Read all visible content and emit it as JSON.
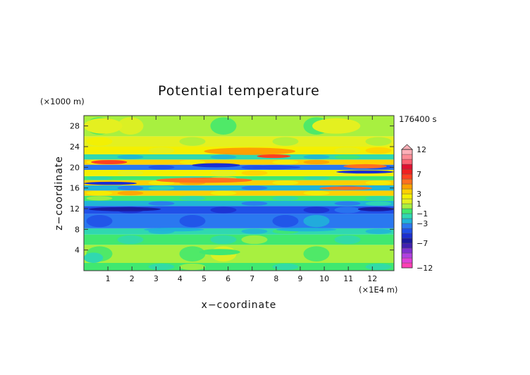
{
  "chart_data": {
    "type": "heatmap",
    "title": "Potential temperature",
    "xlabel": "x−coordinate",
    "ylabel": "z−coordinate",
    "x_unit": "(×1E4 m)",
    "y_unit": "(×1000 m)",
    "time_label": "176400 s",
    "xlim": [
      0,
      12.9
    ],
    "ylim": [
      0,
      30
    ],
    "x_ticks": [
      "1",
      "2",
      "3",
      "4",
      "5",
      "6",
      "7",
      "8",
      "9",
      "10",
      "11",
      "12"
    ],
    "y_ticks": [
      "4",
      "8",
      "12",
      "16",
      "20",
      "24",
      "28"
    ],
    "colorbar": {
      "labels": [
        "12",
        "7",
        "3",
        "1",
        "−1",
        "−3",
        "−7",
        "−12"
      ],
      "levels": [
        -12,
        -11,
        -10,
        -9,
        -8,
        -7,
        -6,
        -5,
        -4,
        -3,
        -2,
        -1,
        0,
        1,
        2,
        3,
        4,
        5,
        6,
        7,
        8,
        9,
        10,
        11,
        12
      ],
      "colors": [
        "#ff3fb4",
        "#e040d8",
        "#b040e0",
        "#8030d0",
        "#4020b0",
        "#1a1aa0",
        "#1c2fd0",
        "#2050e8",
        "#2a78f0",
        "#20b4d8",
        "#30d8b0",
        "#40e870",
        "#a8f040",
        "#e4f020",
        "#f4f000",
        "#ffd000",
        "#ffa000",
        "#ff7020",
        "#ff4020",
        "#f02020",
        "#e01030",
        "#ff6070",
        "#ff8c96",
        "#ffb0b8"
      ]
    },
    "bands": [
      {
        "z_from": 0,
        "z_to": 1.5,
        "level": -1
      },
      {
        "z_from": 1.5,
        "z_to": 5,
        "level": 0
      },
      {
        "z_from": 5,
        "z_to": 7,
        "level": -1
      },
      {
        "z_from": 7,
        "z_to": 8.2,
        "level": -2
      },
      {
        "z_from": 8.2,
        "z_to": 11,
        "level": -4
      },
      {
        "z_from": 11,
        "z_to": 12.5,
        "level": -5
      },
      {
        "z_from": 12.5,
        "z_to": 13.5,
        "level": -3
      },
      {
        "z_from": 13.5,
        "z_to": 14.5,
        "level": -1
      },
      {
        "z_from": 14.5,
        "z_to": 15.5,
        "level": 3
      },
      {
        "z_from": 15.5,
        "z_to": 16.5,
        "level": -3
      },
      {
        "z_from": 16.5,
        "z_to": 17.5,
        "level": 3
      },
      {
        "z_from": 17.5,
        "z_to": 18.3,
        "level": -1
      },
      {
        "z_from": 18.3,
        "z_to": 19.5,
        "level": 2
      },
      {
        "z_from": 19.5,
        "z_to": 20.5,
        "level": -4
      },
      {
        "z_from": 20.5,
        "z_to": 21.5,
        "level": 3
      },
      {
        "z_from": 21.5,
        "z_to": 22.5,
        "level": -2
      },
      {
        "z_from": 22.5,
        "z_to": 24,
        "level": 2
      },
      {
        "z_from": 24,
        "z_to": 26,
        "level": 1
      },
      {
        "z_from": 26,
        "z_to": 30,
        "level": 0
      }
    ],
    "features": [
      {
        "x": [
          0.2,
          3.2
        ],
        "z": [
          11.5,
          12.3
        ],
        "level": -7
      },
      {
        "x": [
          11.4,
          12.9
        ],
        "z": [
          11.5,
          12.3
        ],
        "level": -7
      },
      {
        "x": [
          0.0,
          2.2
        ],
        "z": [
          16.6,
          17.2
        ],
        "level": -6
      },
      {
        "x": [
          4.5,
          6.5
        ],
        "z": [
          20.0,
          20.8
        ],
        "level": -6
      },
      {
        "x": [
          7.0,
          9.0
        ],
        "z": [
          19.6,
          20.4
        ],
        "level": -5
      },
      {
        "x": [
          10.5,
          12.9
        ],
        "z": [
          18.8,
          19.4
        ],
        "level": -6
      },
      {
        "x": [
          0.3,
          1.8
        ],
        "z": [
          20.6,
          21.4
        ],
        "level": 6
      },
      {
        "x": [
          5.0,
          8.8
        ],
        "z": [
          22.4,
          23.8
        ],
        "level": 4
      },
      {
        "x": [
          7.2,
          8.6
        ],
        "z": [
          21.8,
          22.5
        ],
        "level": 6
      },
      {
        "x": [
          10.8,
          12.6
        ],
        "z": [
          19.8,
          20.6
        ],
        "level": 5
      },
      {
        "x": [
          3.0,
          7.0
        ],
        "z": [
          17.0,
          18.0
        ],
        "level": 5
      },
      {
        "x": [
          9.8,
          12.0
        ],
        "z": [
          15.6,
          16.3
        ],
        "level": 5
      },
      {
        "x": [
          2.5,
          5.0
        ],
        "z": [
          7.6,
          8.3
        ],
        "level": -3
      },
      {
        "x": [
          8.0,
          10.5
        ],
        "z": [
          7.6,
          8.3
        ],
        "level": -3
      },
      {
        "x": [
          0.0,
          1.6
        ],
        "z": [
          26.5,
          29.5
        ],
        "level": 1
      },
      {
        "x": [
          9.5,
          11.5
        ],
        "z": [
          26.5,
          29.5
        ],
        "level": 1
      },
      {
        "x": [
          4.8,
          6.5
        ],
        "z": [
          3.0,
          4.2
        ],
        "level": -1
      },
      {
        "x": [
          0.0,
          0.8
        ],
        "z": [
          1.5,
          3.5
        ],
        "level": -2
      }
    ]
  }
}
